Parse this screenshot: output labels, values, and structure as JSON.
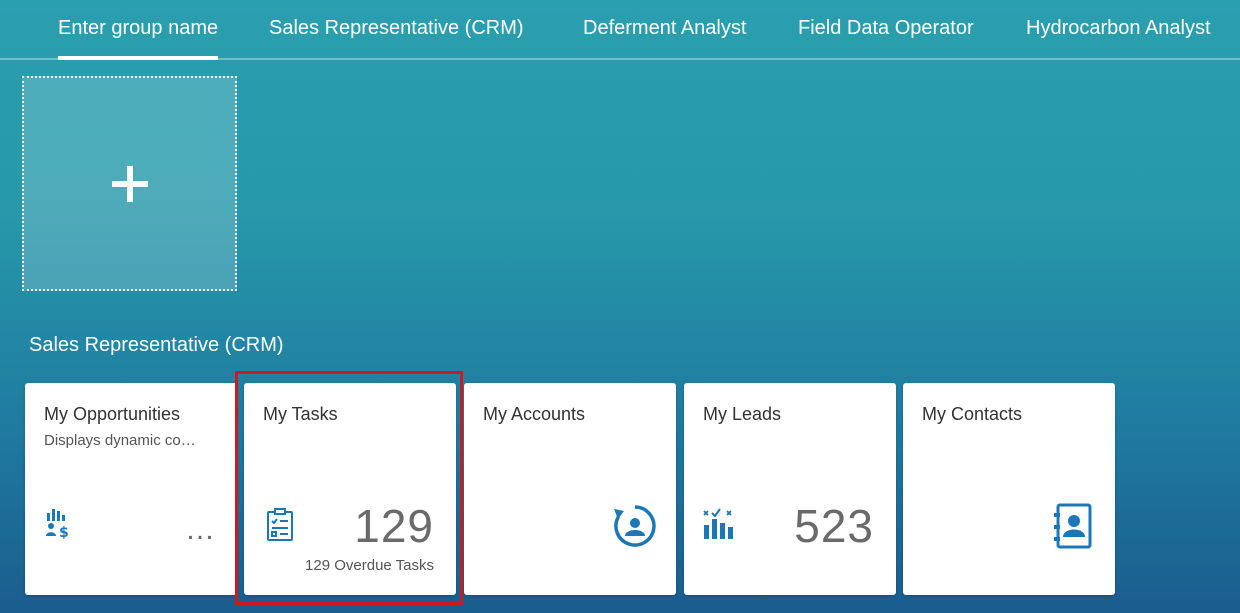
{
  "tabs": [
    {
      "label": "Enter group name",
      "active": true
    },
    {
      "label": "Sales Representative (CRM)"
    },
    {
      "label": "Deferment Analyst"
    },
    {
      "label": "Field Data Operator"
    },
    {
      "label": "Hydrocarbon Analyst"
    }
  ],
  "group": {
    "title": "Sales Representative (CRM)",
    "tiles": [
      {
        "title": "My Opportunities",
        "subtitle": "Displays dynamic co…",
        "icon": "opportunity-icon",
        "number": "…"
      },
      {
        "title": "My Tasks",
        "icon": "task-icon",
        "number": "129",
        "footer": "129 Overdue Tasks",
        "highlighted": true
      },
      {
        "title": "My Accounts",
        "icon": "account-refresh-icon"
      },
      {
        "title": "My Leads",
        "icon": "leads-chart-icon",
        "number": "523"
      },
      {
        "title": "My Contacts",
        "icon": "contacts-book-icon"
      }
    ]
  },
  "colors": {
    "icon": "#1b78b8",
    "highlight": "#cc1b1f"
  }
}
